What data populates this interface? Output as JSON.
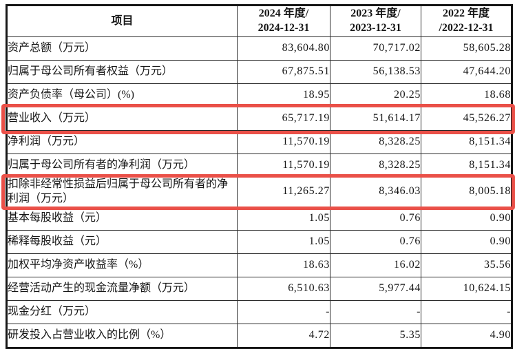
{
  "highlight_color": "#ea5048",
  "table": {
    "header": {
      "item_col": "项目",
      "year_cols": [
        {
          "line1": "2024 年度/",
          "line2": "2024-12-31"
        },
        {
          "line1": "2023 年度/",
          "line2": "2023-12-31"
        },
        {
          "line1": "2022 年度",
          "line2": "/2022-12-31"
        }
      ]
    },
    "rows": [
      {
        "item": "资产总额（万元）",
        "v2024": "83,604.80",
        "v2023": "70,717.02",
        "v2022": "58,605.28",
        "highlighted": false
      },
      {
        "item": "归属于母公司所有者权益（万元）",
        "v2024": "67,875.51",
        "v2023": "56,138.53",
        "v2022": "47,644.20",
        "highlighted": false
      },
      {
        "item": "资产负债率（母公司）(%)",
        "v2024": "18.95",
        "v2023": "20.25",
        "v2022": "18.68",
        "highlighted": false
      },
      {
        "item": "营业收入（万元）",
        "v2024": "65,717.19",
        "v2023": "51,614.17",
        "v2022": "45,526.27",
        "highlighted": true
      },
      {
        "item": "净利润（万元）",
        "v2024": "11,570.19",
        "v2023": "8,328.25",
        "v2022": "8,151.34",
        "highlighted": false
      },
      {
        "item": "归属于母公司所有者的净利润（万元）",
        "v2024": "11,570.19",
        "v2023": "8,328.25",
        "v2022": "8,151.34",
        "highlighted": false
      },
      {
        "item": "扣除非经常性损益后归属于母公司所有者的净利润（万元）",
        "v2024": "11,265.27",
        "v2023": "8,346.03",
        "v2022": "8,005.18",
        "highlighted": true
      },
      {
        "item": "基本每股收益（元）",
        "v2024": "1.05",
        "v2023": "0.76",
        "v2022": "0.90",
        "highlighted": false
      },
      {
        "item": "稀释每股收益（元）",
        "v2024": "1.05",
        "v2023": "0.76",
        "v2022": "0.90",
        "highlighted": false
      },
      {
        "item": "加权平均净资产收益率（%）",
        "v2024": "18.63",
        "v2023": "16.02",
        "v2022": "35.56",
        "highlighted": false
      },
      {
        "item": "经营活动产生的现金流量净额（万元）",
        "v2024": "6,510.63",
        "v2023": "5,977.44",
        "v2022": "10,624.15",
        "highlighted": false
      },
      {
        "item": "现金分红（万元）",
        "v2024": "-",
        "v2023": "-",
        "v2022": "-",
        "highlighted": false
      },
      {
        "item": "研发投入占营业收入的比例（%）",
        "v2024": "4.72",
        "v2023": "5.35",
        "v2022": "4.90",
        "highlighted": false
      }
    ]
  }
}
